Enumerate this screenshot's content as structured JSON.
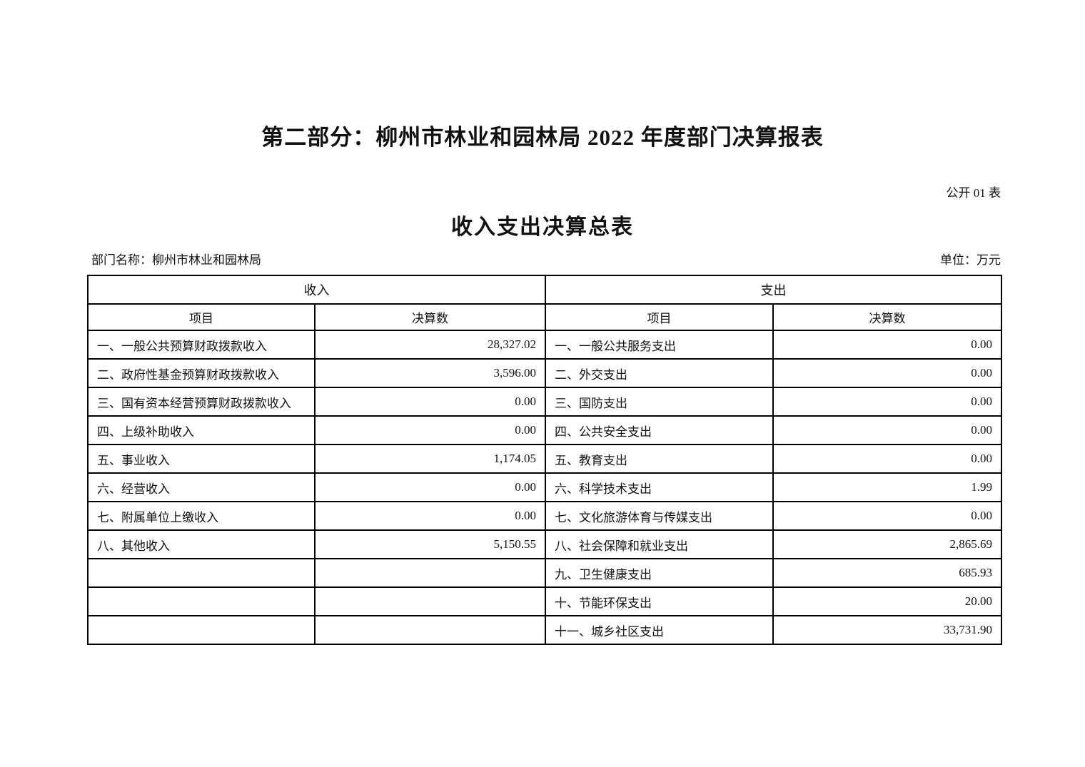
{
  "page": {
    "title": "第二部分：柳州市林业和园林局 2022 年度部门决算报表",
    "form_number": "公开 01 表",
    "table_title": "收入支出决算总表",
    "department_label": "部门名称：柳州市林业和园林局",
    "unit_label": "单位：万元"
  },
  "table": {
    "income_header": "收入",
    "expense_header": "支出",
    "item_col_header": "项目",
    "value_col_header": "决算数",
    "rows": [
      {
        "income_item": "一、一般公共预算财政拨款收入",
        "income_value": "28,327.02",
        "expense_item": "一、一般公共服务支出",
        "expense_value": "0.00"
      },
      {
        "income_item": "二、政府性基金预算财政拨款收入",
        "income_value": "3,596.00",
        "expense_item": "二、外交支出",
        "expense_value": "0.00"
      },
      {
        "income_item": "三、国有资本经营预算财政拨款收入",
        "income_value": "0.00",
        "expense_item": "三、国防支出",
        "expense_value": "0.00"
      },
      {
        "income_item": "四、上级补助收入",
        "income_value": "0.00",
        "expense_item": "四、公共安全支出",
        "expense_value": "0.00"
      },
      {
        "income_item": "五、事业收入",
        "income_value": "1,174.05",
        "expense_item": "五、教育支出",
        "expense_value": "0.00"
      },
      {
        "income_item": "六、经营收入",
        "income_value": "0.00",
        "expense_item": "六、科学技术支出",
        "expense_value": "1.99"
      },
      {
        "income_item": "七、附属单位上缴收入",
        "income_value": "0.00",
        "expense_item": "七、文化旅游体育与传媒支出",
        "expense_value": "0.00"
      },
      {
        "income_item": "八、其他收入",
        "income_value": "5,150.55",
        "expense_item": "八、社会保障和就业支出",
        "expense_value": "2,865.69"
      },
      {
        "income_item": "",
        "income_value": "",
        "expense_item": "九、卫生健康支出",
        "expense_value": "685.93"
      },
      {
        "income_item": "",
        "income_value": "",
        "expense_item": "十、节能环保支出",
        "expense_value": "20.00"
      },
      {
        "income_item": "",
        "income_value": "",
        "expense_item": "十一、城乡社区支出",
        "expense_value": "33,731.90"
      }
    ]
  }
}
